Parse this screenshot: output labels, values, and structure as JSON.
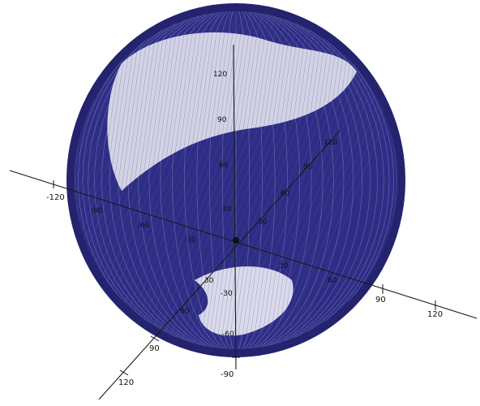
{
  "colors": {
    "wireframe": "#2e2d86",
    "background": "#ffffff",
    "axis": "#1a1a1a"
  },
  "axes": {
    "x_ticks": [
      {
        "label": "-120"
      },
      {
        "label": "-90"
      },
      {
        "label": "-60"
      },
      {
        "label": "-30"
      },
      {
        "label": "30"
      },
      {
        "label": "60"
      },
      {
        "label": "90"
      },
      {
        "label": "120"
      }
    ],
    "y_ticks": [
      {
        "label": "120"
      },
      {
        "label": "90"
      },
      {
        "label": "60"
      },
      {
        "label": "30"
      },
      {
        "label": "-30"
      },
      {
        "label": "-60"
      },
      {
        "label": "-90"
      }
    ],
    "z_ticks": [
      {
        "label": "120"
      },
      {
        "label": "90"
      },
      {
        "label": "60"
      },
      {
        "label": "30"
      },
      {
        "label": "30"
      },
      {
        "label": "60"
      },
      {
        "label": "90"
      },
      {
        "label": "120"
      }
    ]
  }
}
